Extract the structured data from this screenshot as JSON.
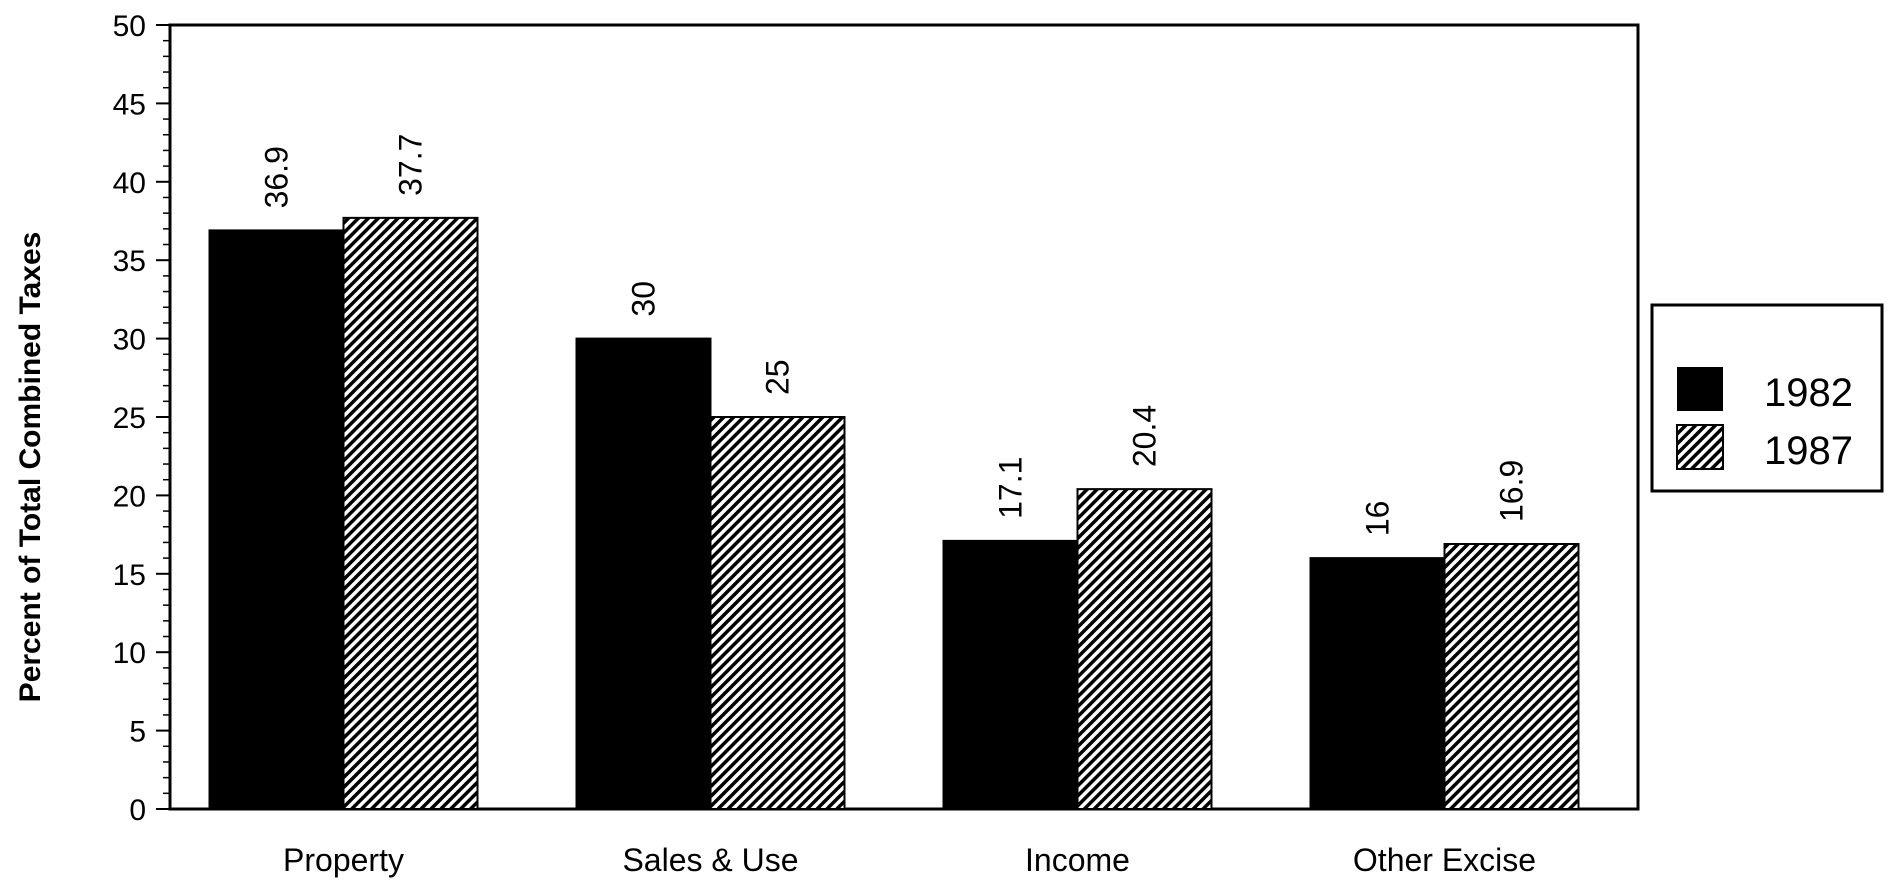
{
  "chart_data": {
    "type": "bar",
    "categories": [
      "Property",
      "Sales & Use",
      "Income",
      "Other Excise"
    ],
    "series": [
      {
        "name": "1982",
        "values": [
          36.9,
          30,
          17.1,
          16
        ],
        "fill": "solid",
        "color": "#000000"
      },
      {
        "name": "1987",
        "values": [
          37.7,
          25,
          20.4,
          16.9
        ],
        "fill": "diagonal-hatch",
        "color": "#000000"
      }
    ],
    "data_labels": [
      [
        "36.9",
        "30",
        "17.1",
        "16"
      ],
      [
        "37.7",
        "25",
        "20.4",
        "16.9"
      ]
    ],
    "title": "",
    "xlabel": "",
    "ylabel": "Percent of Total Combined Taxes",
    "ylim": [
      0,
      50
    ],
    "yticks": [
      0,
      5,
      10,
      15,
      20,
      25,
      30,
      35,
      40,
      45,
      50
    ],
    "grid": false,
    "legend_position": "right"
  }
}
